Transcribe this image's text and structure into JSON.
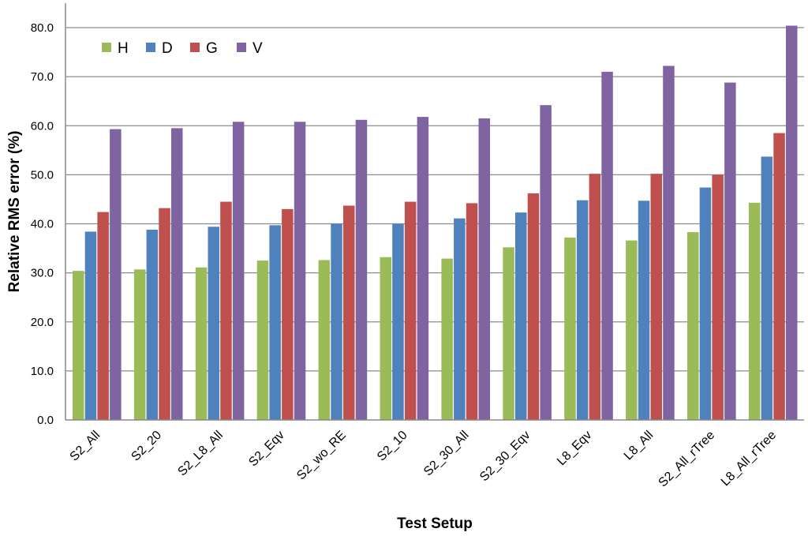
{
  "chart_data": {
    "type": "bar",
    "title": "",
    "xlabel": "Test Setup",
    "ylabel": "Relative RMS error (%)",
    "ylim": [
      0,
      80
    ],
    "yticks": [
      "0.0",
      "10.0",
      "20.0",
      "30.0",
      "40.0",
      "50.0",
      "60.0",
      "70.0",
      "80.0"
    ],
    "grid": "horizontal",
    "legend_position": "top-left",
    "categories": [
      "S2_All",
      "S2_20",
      "S2_L8_All",
      "S2_Eqv",
      "S2_wo_RE",
      "S2_10",
      "S2_30_All",
      "S2_30_Eqv",
      "L8_Eqv",
      "L8_All",
      "S2_All_rTree",
      "L8_All_rTree"
    ],
    "series": [
      {
        "name": "H",
        "color": "#9BBB59",
        "values": [
          30.4,
          30.7,
          31.1,
          32.5,
          32.6,
          33.2,
          32.9,
          35.2,
          37.2,
          36.6,
          38.3,
          44.3
        ]
      },
      {
        "name": "D",
        "color": "#4F81BD",
        "values": [
          38.4,
          38.8,
          39.4,
          39.7,
          40.0,
          40.0,
          41.1,
          42.3,
          44.8,
          44.7,
          47.4,
          53.7
        ]
      },
      {
        "name": "G",
        "color": "#C0504D",
        "values": [
          42.4,
          43.2,
          44.5,
          43.0,
          43.7,
          44.5,
          44.2,
          46.2,
          50.2,
          50.2,
          50.0,
          58.5
        ]
      },
      {
        "name": "V",
        "color": "#8064A2",
        "values": [
          59.3,
          59.5,
          60.8,
          60.8,
          61.2,
          61.8,
          61.5,
          64.2,
          71.0,
          72.2,
          68.8,
          80.4
        ]
      }
    ]
  }
}
